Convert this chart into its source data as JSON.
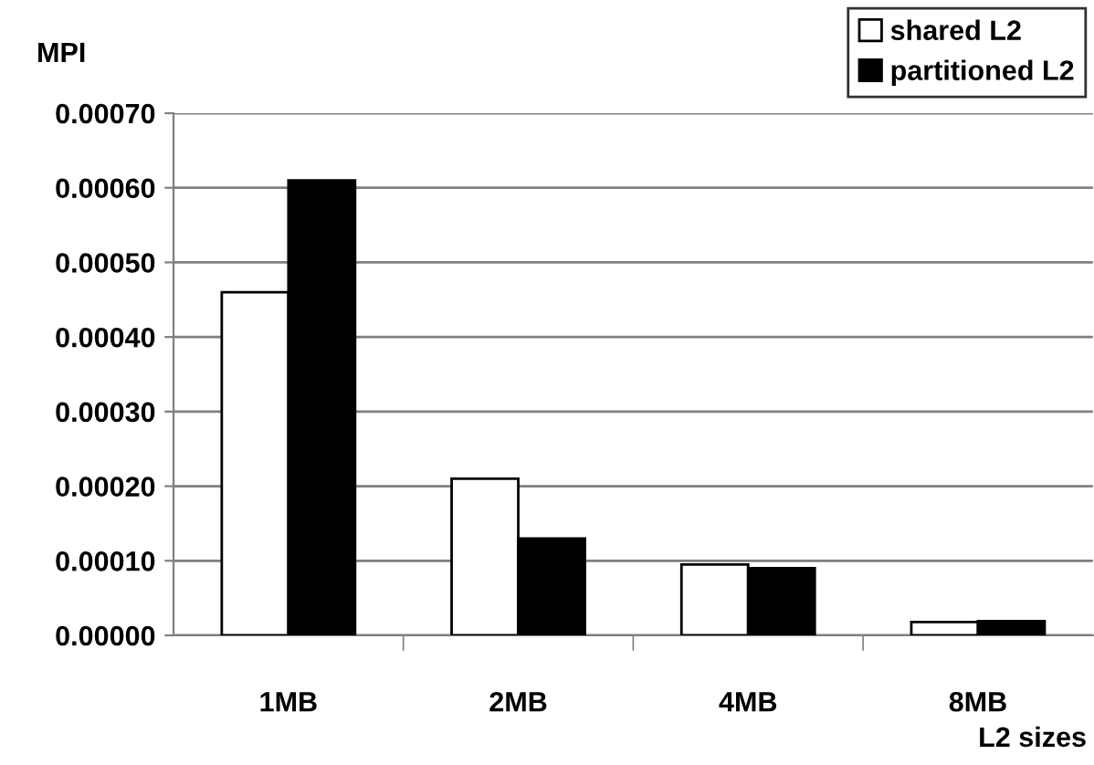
{
  "chart_data": {
    "type": "bar",
    "ylabel": "MPI",
    "xlabel": "L2 sizes",
    "categories": [
      "1MB",
      "2MB",
      "4MB",
      "8MB"
    ],
    "series": [
      {
        "name": "shared L2",
        "color": "#ffffff",
        "values": [
          0.00046,
          0.00021,
          9.5e-05,
          1.8e-05
        ]
      },
      {
        "name": "partitioned L2",
        "color": "#000000",
        "values": [
          0.00061,
          0.00013,
          9e-05,
          1.9e-05
        ]
      }
    ],
    "ylim": [
      0,
      0.0007
    ],
    "yticks": [
      {
        "value": 0,
        "label": "0.00000"
      },
      {
        "value": 0.0001,
        "label": "0.00010"
      },
      {
        "value": 0.0002,
        "label": "0.00020"
      },
      {
        "value": 0.0003,
        "label": "0.00030"
      },
      {
        "value": 0.0004,
        "label": "0.00040"
      },
      {
        "value": 0.0005,
        "label": "0.00050"
      },
      {
        "value": 0.0006,
        "label": "0.00060"
      },
      {
        "value": 0.0007,
        "label": "0.00070"
      }
    ],
    "grid": "y",
    "legend": "top right"
  }
}
